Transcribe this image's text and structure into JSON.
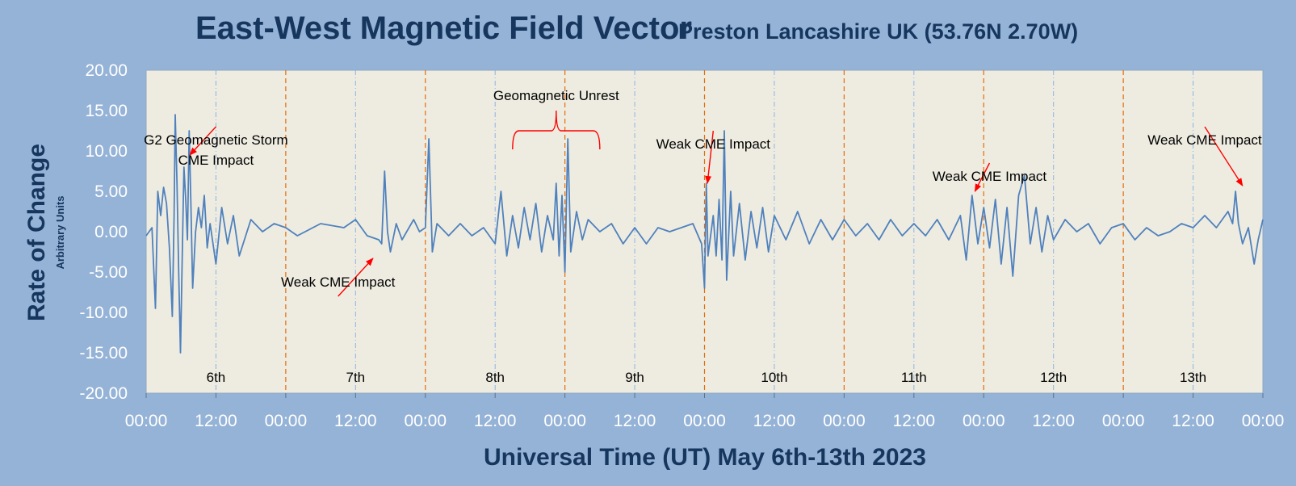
{
  "chart_data": {
    "type": "line",
    "title": "East-West Magnetic Field Vector",
    "subtitle": "Preston Lancashire UK (53.76N 2.70W)",
    "ylabel": "Rate of Change",
    "ylabel_sub": "Arbitrary Units",
    "xlabel": "Universal Time (UT)  May 6th-13th 2023",
    "ylim": [
      -20,
      20
    ],
    "xlim_hours": [
      0,
      192
    ],
    "y_ticks": [
      "20.00",
      "15.00",
      "10.00",
      "5.00",
      "0.00",
      "-5.00",
      "-10.00",
      "-15.00",
      "-20.00"
    ],
    "x_ticks": [
      "00:00",
      "12:00",
      "00:00",
      "12:00",
      "00:00",
      "12:00",
      "00:00",
      "12:00",
      "00:00",
      "12:00",
      "00:00",
      "12:00",
      "00:00",
      "12:00",
      "00:00",
      "12:00",
      "00:00"
    ],
    "day_labels": [
      "6th",
      "7th",
      "8th",
      "9th",
      "10th",
      "11th",
      "12th",
      "13th"
    ],
    "grid": "vertical: dashed orange at midnight, dash-dot blue at noon",
    "series": [
      {
        "color": "#4f81bd",
        "points": [
          [
            0,
            -0.5
          ],
          [
            1.0,
            0.5
          ],
          [
            1.6,
            -9.5
          ],
          [
            2.0,
            5.0
          ],
          [
            2.5,
            2.0
          ],
          [
            3.0,
            5.5
          ],
          [
            3.5,
            3.5
          ],
          [
            4.0,
            -2.0
          ],
          [
            4.5,
            -10.5
          ],
          [
            4.8,
            2.0
          ],
          [
            5.0,
            14.5
          ],
          [
            5.3,
            6.0
          ],
          [
            5.6,
            -5.0
          ],
          [
            5.9,
            -15.0
          ],
          [
            6.2,
            -3.0
          ],
          [
            6.5,
            8.0
          ],
          [
            6.8,
            4.0
          ],
          [
            7.1,
            -1.0
          ],
          [
            7.4,
            12.5
          ],
          [
            7.7,
            3.0
          ],
          [
            8.0,
            -7.0
          ],
          [
            8.5,
            0.0
          ],
          [
            9.0,
            3.0
          ],
          [
            9.5,
            0.5
          ],
          [
            10.0,
            4.5
          ],
          [
            10.5,
            -2.0
          ],
          [
            11,
            1.0
          ],
          [
            12,
            -4.0
          ],
          [
            13,
            3.0
          ],
          [
            14,
            -1.5
          ],
          [
            15,
            2.0
          ],
          [
            16,
            -3.0
          ],
          [
            18,
            1.5
          ],
          [
            20,
            0.0
          ],
          [
            22,
            1.0
          ],
          [
            24,
            0.5
          ],
          [
            26,
            -0.5
          ],
          [
            30,
            1.0
          ],
          [
            34,
            0.5
          ],
          [
            36,
            1.5
          ],
          [
            38,
            -0.5
          ],
          [
            40,
            -1.0
          ],
          [
            40.5,
            -1.5
          ],
          [
            41.0,
            7.5
          ],
          [
            41.5,
            0.0
          ],
          [
            42.0,
            -2.5
          ],
          [
            43,
            1.0
          ],
          [
            44,
            -1.0
          ],
          [
            46,
            1.5
          ],
          [
            47,
            0.0
          ],
          [
            48,
            0.5
          ],
          [
            48.6,
            11.5
          ],
          [
            49.2,
            -2.5
          ],
          [
            50,
            1.0
          ],
          [
            52,
            -0.5
          ],
          [
            54,
            1.0
          ],
          [
            56,
            -0.5
          ],
          [
            58,
            0.5
          ],
          [
            60,
            -1.5
          ],
          [
            61,
            5.0
          ],
          [
            62,
            -3.0
          ],
          [
            63,
            2.0
          ],
          [
            64,
            -2.0
          ],
          [
            65,
            3.0
          ],
          [
            66,
            -1.0
          ],
          [
            67,
            3.5
          ],
          [
            68,
            -2.5
          ],
          [
            69,
            2.0
          ],
          [
            70,
            -1.0
          ],
          [
            70.5,
            6.0
          ],
          [
            71.0,
            -3.0
          ],
          [
            71.5,
            4.5
          ],
          [
            72,
            -5.0
          ],
          [
            72.5,
            11.5
          ],
          [
            73,
            -2.5
          ],
          [
            74,
            2.5
          ],
          [
            75,
            -1.0
          ],
          [
            76,
            1.5
          ],
          [
            78,
            0.0
          ],
          [
            80,
            1.0
          ],
          [
            82,
            -1.5
          ],
          [
            84,
            0.5
          ],
          [
            86,
            -1.5
          ],
          [
            88,
            0.5
          ],
          [
            90,
            0.0
          ],
          [
            92,
            0.5
          ],
          [
            94,
            1.0
          ],
          [
            95.5,
            -1.5
          ],
          [
            96.0,
            -7.0
          ],
          [
            96.3,
            6.0
          ],
          [
            96.6,
            -3.0
          ],
          [
            97.5,
            2.0
          ],
          [
            98,
            -3.0
          ],
          [
            98.5,
            4.0
          ],
          [
            99.0,
            -3.5
          ],
          [
            99.4,
            12.5
          ],
          [
            99.8,
            -6.0
          ],
          [
            100.5,
            5.0
          ],
          [
            101,
            -3.0
          ],
          [
            102,
            3.5
          ],
          [
            103,
            -3.5
          ],
          [
            104,
            2.5
          ],
          [
            105,
            -2.0
          ],
          [
            106,
            3.0
          ],
          [
            107,
            -2.5
          ],
          [
            108,
            2.0
          ],
          [
            110,
            -1.0
          ],
          [
            112,
            2.5
          ],
          [
            114,
            -1.5
          ],
          [
            116,
            1.5
          ],
          [
            118,
            -1.0
          ],
          [
            120,
            1.5
          ],
          [
            122,
            -0.5
          ],
          [
            124,
            1.0
          ],
          [
            126,
            -1.0
          ],
          [
            128,
            1.5
          ],
          [
            130,
            -0.5
          ],
          [
            132,
            1.0
          ],
          [
            134,
            -0.5
          ],
          [
            136,
            1.5
          ],
          [
            138,
            -1.0
          ],
          [
            140,
            2.0
          ],
          [
            141,
            -3.5
          ],
          [
            142,
            4.5
          ],
          [
            143,
            -1.5
          ],
          [
            144,
            3.0
          ],
          [
            145,
            -2.0
          ],
          [
            146,
            4.0
          ],
          [
            147,
            -4.0
          ],
          [
            148,
            3.0
          ],
          [
            149,
            -5.5
          ],
          [
            150,
            4.5
          ],
          [
            151,
            7.0
          ],
          [
            152,
            -1.5
          ],
          [
            153,
            3.0
          ],
          [
            154,
            -2.5
          ],
          [
            155,
            2.0
          ],
          [
            156,
            -1.0
          ],
          [
            158,
            1.5
          ],
          [
            160,
            0.0
          ],
          [
            162,
            1.0
          ],
          [
            164,
            -1.5
          ],
          [
            166,
            0.5
          ],
          [
            168,
            1.0
          ],
          [
            170,
            -1.0
          ],
          [
            172,
            0.5
          ],
          [
            174,
            -0.5
          ],
          [
            176,
            0.0
          ],
          [
            178,
            1.0
          ],
          [
            180,
            0.5
          ],
          [
            182,
            2.0
          ],
          [
            184,
            0.5
          ],
          [
            186,
            2.5
          ],
          [
            186.8,
            1.0
          ],
          [
            187.3,
            5.0
          ],
          [
            187.8,
            1.0
          ],
          [
            188.5,
            -1.5
          ],
          [
            189.5,
            0.5
          ],
          [
            190.5,
            -4.0
          ],
          [
            191.2,
            -1.0
          ],
          [
            192,
            1.5
          ]
        ]
      }
    ],
    "annotations": [
      {
        "lines": [
          "G2 Geomagnetic Storm",
          "CME Impact"
        ],
        "arrow_from": [
          12,
          13
        ],
        "arrow_to": [
          7.5,
          9.5
        ]
      },
      {
        "lines": [
          "Weak CME Impact"
        ],
        "arrow_from": [
          33,
          -8.0
        ],
        "arrow_to": [
          39,
          -3.3
        ]
      },
      {
        "lines": [
          "Geomagnetic Unrest"
        ],
        "bracket": [
          63,
          78
        ]
      },
      {
        "lines": [
          "Weak CME Impact"
        ],
        "arrow_from": [
          97.5,
          12.5
        ],
        "arrow_to": [
          96.5,
          6.0
        ]
      },
      {
        "lines": [
          "Weak CME Impact"
        ],
        "arrow_from": [
          145,
          8.5
        ],
        "arrow_to": [
          142.5,
          5.0
        ]
      },
      {
        "lines": [
          "Weak CME Impact"
        ],
        "arrow_from": [
          182,
          13.0
        ],
        "arrow_to": [
          188.5,
          5.7
        ]
      }
    ]
  }
}
